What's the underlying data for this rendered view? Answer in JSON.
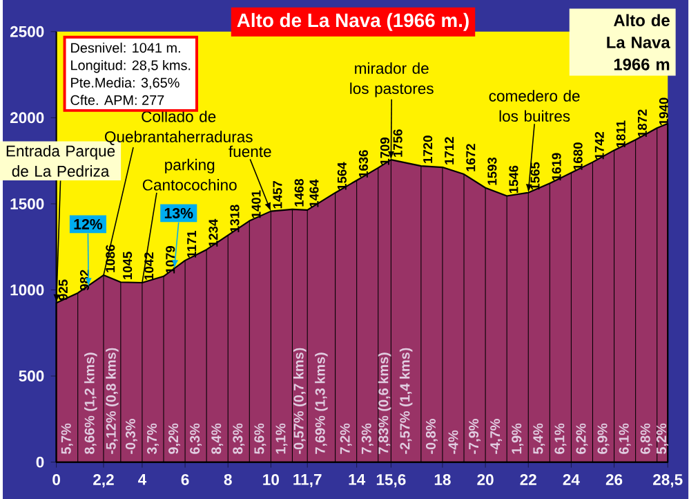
{
  "chart_data": {
    "type": "area",
    "title": "Alto de La Nava (1966 m.)",
    "color": "#993366",
    "x": [
      0,
      1,
      2.2,
      3,
      4,
      5,
      6,
      7,
      8,
      9,
      10,
      11,
      11.7,
      13,
      14,
      15,
      15.6,
      17,
      18,
      19,
      20,
      21,
      22,
      23,
      24,
      25,
      26,
      27,
      28,
      28.5
    ],
    "values": [
      925,
      982,
      1086,
      1045,
      1042,
      1079,
      1171,
      1234,
      1318,
      1401,
      1457,
      1468,
      1464,
      1564,
      1636,
      1709,
      1756,
      1720,
      1712,
      1672,
      1593,
      1546,
      1565,
      1619,
      1680,
      1742,
      1811,
      1872,
      1940,
      1966
    ],
    "value_labels": [
      "925",
      "982",
      "1086",
      "1045",
      "1042",
      "1079",
      "1171",
      "1234",
      "1318",
      "1401",
      "1457",
      "1468",
      "1464",
      "1564",
      "1636",
      "1709",
      "1756",
      "1720",
      "1712",
      "1672",
      "1593",
      "1546",
      "1565",
      "1619",
      "1680",
      "1742",
      "1811",
      "1872",
      "1940",
      null
    ],
    "xlim": [
      0,
      28.5
    ],
    "ylim": [
      0,
      2500
    ],
    "xticks": [
      0,
      {
        "value": 2.2,
        "label": "2,2"
      },
      4,
      6,
      8,
      10,
      {
        "value": 11.7,
        "label": "11,7"
      },
      14,
      {
        "value": 15.6,
        "label": "15,6"
      },
      18,
      20,
      22,
      24,
      26,
      {
        "value": 28.5,
        "label": "28,5"
      }
    ],
    "yticks": [
      0,
      500,
      1000,
      1500,
      2000,
      2500
    ],
    "annotations": [
      "Desnivel: 1041 m.",
      "Longitud: 28,5 kms.",
      "Pte.Media: 3,65%",
      "Cfte. APM: 277",
      "Alto de La Nava 1966 m",
      {
        "text": "Entrada Parque de La Pedriza",
        "x": 0,
        "y": 925
      },
      {
        "text": "Collado de Quebrantaherraduras",
        "x": 2.2,
        "y": 1086
      },
      {
        "text": "parking Cantocochino",
        "x": 4,
        "y": 1042
      },
      {
        "text": "fuente",
        "x": 10,
        "y": 1457
      },
      {
        "text": "mirador de los pastores",
        "x": 15.6,
        "y": 1756
      },
      {
        "text": "comedero de los buitres",
        "x": 22,
        "y": 1565
      },
      {
        "text": "12%",
        "x": 1.5,
        "y": 1020
      },
      {
        "text": "13%",
        "x": 5.5,
        "y": 1125
      },
      {
        "text": "5,7%",
        "x": 0.5,
        "y": 0
      },
      {
        "text": "8,66% (1,2 kms)",
        "x": 1.6,
        "y": 0
      },
      {
        "text": "-5,12% (0,8 kms)",
        "x": 2.6,
        "y": 0
      },
      {
        "text": "-0,3%",
        "x": 3.5,
        "y": 0
      },
      {
        "text": "3,7%",
        "x": 4.5,
        "y": 0
      },
      {
        "text": "9,2%",
        "x": 5.5,
        "y": 0
      },
      {
        "text": "6,3%",
        "x": 6.5,
        "y": 0
      },
      {
        "text": "8,4%",
        "x": 7.5,
        "y": 0
      },
      {
        "text": "8,3%",
        "x": 8.5,
        "y": 0
      },
      {
        "text": "5,6%",
        "x": 9.5,
        "y": 0
      },
      {
        "text": "1,1%",
        "x": 10.5,
        "y": 0
      },
      {
        "text": "-0,57% (0,7 kms)",
        "x": 11.35,
        "y": 0
      },
      {
        "text": "7,69% (1,3 kms)",
        "x": 12.35,
        "y": 0
      },
      {
        "text": "7,2%",
        "x": 13.5,
        "y": 0
      },
      {
        "text": "7,3%",
        "x": 14.5,
        "y": 0
      },
      {
        "text": "7,83% (0,6 kms)",
        "x": 15.3,
        "y": 0
      },
      {
        "text": "-2,57% (1,4 kms)",
        "x": 16.3,
        "y": 0
      },
      {
        "text": "-0,8%",
        "x": 17.5,
        "y": 0
      },
      {
        "text": "-4%",
        "x": 18.5,
        "y": 0
      },
      {
        "text": "-7,9%",
        "x": 19.5,
        "y": 0
      },
      {
        "text": "-4,7%",
        "x": 20.5,
        "y": 0
      },
      {
        "text": "1,9%",
        "x": 21.5,
        "y": 0
      },
      {
        "text": "5,4%",
        "x": 22.5,
        "y": 0
      },
      {
        "text": "6,1%",
        "x": 23.5,
        "y": 0
      },
      {
        "text": "6,2%",
        "x": 24.5,
        "y": 0
      },
      {
        "text": "6,9%",
        "x": 25.5,
        "y": 0
      },
      {
        "text": "6,1%",
        "x": 26.5,
        "y": 0
      },
      {
        "text": "6,8%",
        "x": 27.5,
        "y": 0
      },
      {
        "text": "5,2%",
        "x": 28.25,
        "y": 0
      }
    ]
  }
}
